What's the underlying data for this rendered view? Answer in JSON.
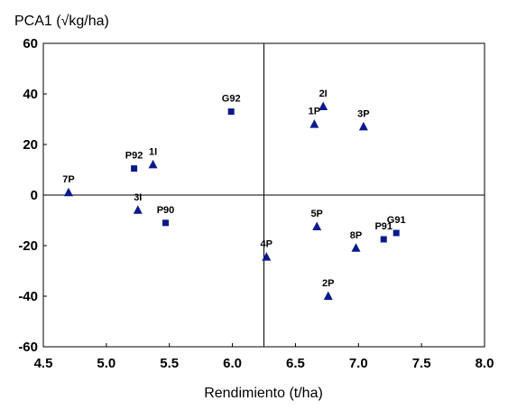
{
  "chart_data": {
    "type": "scatter",
    "xlabel": "Rendimiento (t/ha)",
    "ylabel": "PCA1 (√kg/ha)",
    "xlim": [
      4.5,
      8.0
    ],
    "ylim": [
      -60,
      60
    ],
    "xticks": [
      "4.5",
      "5.0",
      "5.5",
      "6.0",
      "6.5",
      "7.0",
      "7.5",
      "8.0"
    ],
    "yticks": [
      "60",
      "40",
      "20",
      "0",
      "-20",
      "-40",
      "-60"
    ],
    "reference_lines": {
      "x": 6.25,
      "y": 0
    },
    "grid": false,
    "marker_color": "#0a1a8c",
    "series": [
      {
        "marker": "square",
        "points": [
          {
            "label": "G92",
            "x": 5.99,
            "y": 33
          },
          {
            "label": "P92",
            "x": 5.22,
            "y": 10.5
          },
          {
            "label": "P90",
            "x": 5.47,
            "y": -11
          },
          {
            "label": "P91",
            "x": 7.2,
            "y": -17.5
          },
          {
            "label": "G91",
            "x": 7.3,
            "y": -15
          }
        ]
      },
      {
        "marker": "triangle",
        "points": [
          {
            "label": "2I",
            "x": 6.72,
            "y": 35
          },
          {
            "label": "1P",
            "x": 6.65,
            "y": 28
          },
          {
            "label": "3P",
            "x": 7.04,
            "y": 27
          },
          {
            "label": "1I",
            "x": 5.37,
            "y": 12
          },
          {
            "label": "7P",
            "x": 4.7,
            "y": 1
          },
          {
            "label": "3I",
            "x": 5.25,
            "y": -6
          },
          {
            "label": "5P",
            "x": 6.67,
            "y": -12.5
          },
          {
            "label": "8P",
            "x": 6.98,
            "y": -21
          },
          {
            "label": "4P",
            "x": 6.27,
            "y": -24.5
          },
          {
            "label": "2P",
            "x": 6.76,
            "y": -40
          }
        ]
      }
    ]
  }
}
